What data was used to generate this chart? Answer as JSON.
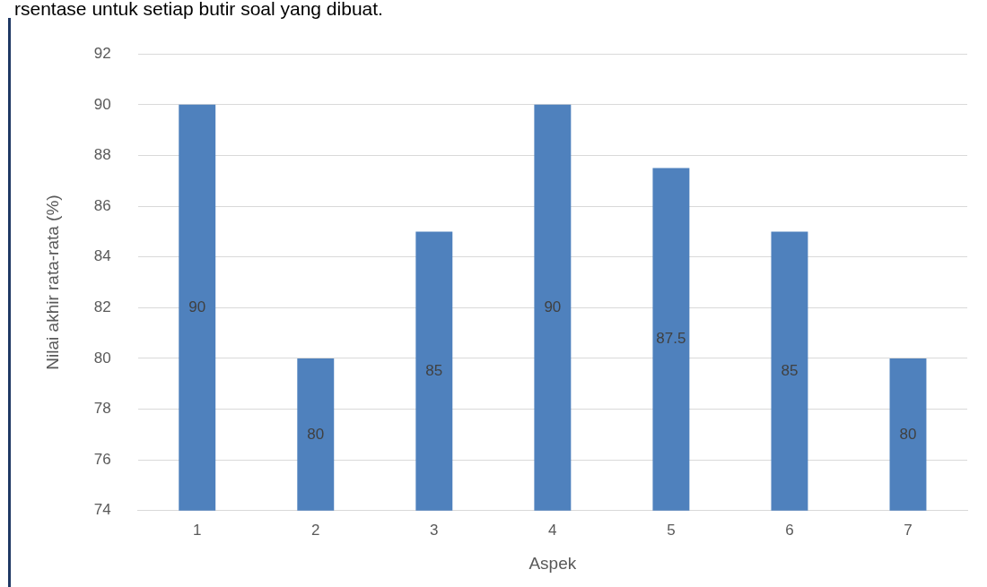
{
  "chart_data": {
    "type": "bar",
    "categories": [
      "1",
      "2",
      "3",
      "4",
      "5",
      "6",
      "7"
    ],
    "values": [
      90,
      80,
      85,
      90,
      87.5,
      85,
      80
    ],
    "color": "#4f81bd",
    "xlabel": "Aspek",
    "ylabel": "Nilai akhir rata-rata (%)",
    "ylim": [
      74,
      92
    ],
    "yticks": [
      74,
      76,
      78,
      80,
      82,
      84,
      86,
      88,
      90,
      92
    ],
    "grid": "y",
    "data_labels": true,
    "legend": false,
    "annotations": [
      "rsentase untuk setiap butir soal yang dibuat."
    ]
  }
}
